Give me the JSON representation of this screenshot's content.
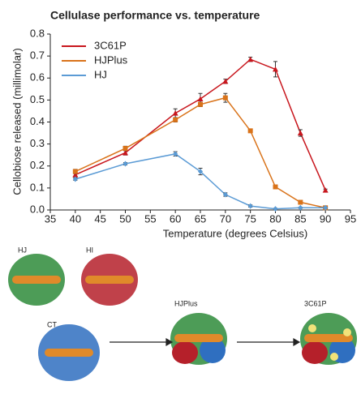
{
  "chart_data": {
    "type": "line",
    "title": "Cellulase performance vs. temperature",
    "x_label": "Temperature (degrees Celsius)",
    "y_label": "Cellobiose released (millimolar)",
    "x": [
      40,
      50,
      60,
      65,
      70,
      75,
      80,
      85,
      90
    ],
    "series": [
      {
        "name": "3C61P",
        "color": "#c8161d",
        "marker": "triangle",
        "values": [
          0.16,
          0.26,
          0.44,
          0.505,
          0.585,
          0.685,
          0.64,
          0.35,
          0.09
        ],
        "errors": [
          0.01,
          0.01,
          0.02,
          0.025,
          0.01,
          0.01,
          0.035,
          0.015,
          0.005
        ]
      },
      {
        "name": "HJPlus",
        "color": "#d9731a",
        "marker": "square",
        "values": [
          0.175,
          0.28,
          0.41,
          0.48,
          0.51,
          0.36,
          0.105,
          0.035,
          0.01
        ],
        "errors": [
          0.01,
          0.01,
          0.01,
          0.01,
          0.02,
          0.005,
          0.005,
          0.005,
          0.005
        ]
      },
      {
        "name": "HJ",
        "color": "#5b9bd5",
        "marker": "diamond",
        "values": [
          0.14,
          0.21,
          0.255,
          0.175,
          0.07,
          0.018,
          0.005,
          0.01,
          0.01
        ],
        "errors": [
          0.005,
          0.005,
          0.01,
          0.015,
          0.008,
          0.005,
          0.003,
          0.003,
          0.003
        ]
      }
    ],
    "xlim": [
      35,
      95
    ],
    "xticks": [
      35,
      40,
      45,
      50,
      55,
      60,
      65,
      70,
      75,
      80,
      85,
      90,
      95
    ],
    "ylim": [
      0,
      0.8
    ],
    "yticks": [
      {
        "value": 0,
        "label": "0.0"
      },
      0.1,
      0.2,
      0.3,
      0.4,
      0.5,
      0.6,
      0.7,
      0.8
    ],
    "grid": false,
    "legend": "upper left"
  },
  "structures": {
    "labels": [
      "HJ",
      "HI",
      "CT",
      "HJPlus",
      "3C61P"
    ]
  }
}
